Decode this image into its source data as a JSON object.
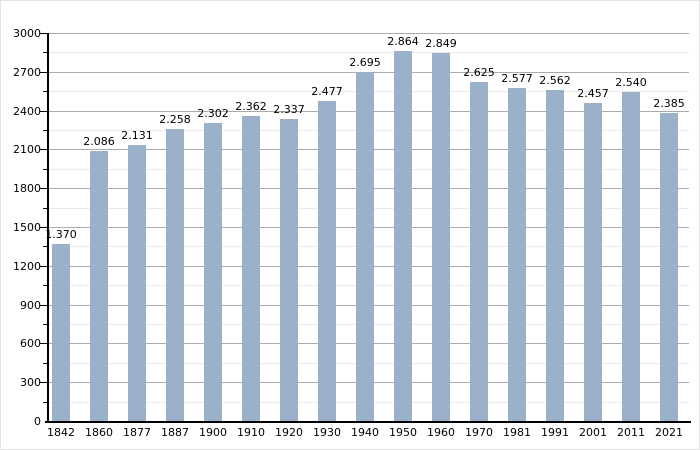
{
  "chart_data": {
    "type": "bar",
    "title": "",
    "xlabel": "",
    "ylabel": "",
    "categories": [
      "1842",
      "1860",
      "1877",
      "1887",
      "1900",
      "1910",
      "1920",
      "1930",
      "1940",
      "1950",
      "1960",
      "1970",
      "1981",
      "1991",
      "2001",
      "2011",
      "2021"
    ],
    "values": [
      1370,
      2086,
      2131,
      2258,
      2302,
      2362,
      2337,
      2477,
      2695,
      2864,
      2849,
      2625,
      2577,
      2562,
      2457,
      2540,
      2385
    ],
    "value_labels": [
      "1.370",
      "2.086",
      "2.131",
      "2.258",
      "2.302",
      "2.362",
      "2.337",
      "2.477",
      "2.695",
      "2.864",
      "2.849",
      "2.625",
      "2.577",
      "2.562",
      "2.457",
      "2.540",
      "2.385"
    ],
    "y_tick_labels": [
      "0",
      "300",
      "600",
      "900",
      "1200",
      "1500",
      "1800",
      "2100",
      "2400",
      "2700",
      "3000"
    ],
    "ylim": [
      0,
      3000
    ],
    "y_major_step": 300,
    "y_minor_step": 150,
    "grid": true,
    "legend": "none",
    "bar_color": "#9bb1c9",
    "major_grid_color": "#aaaaaa",
    "minor_grid_color": "#e9e9ee",
    "axis_color": "#000000",
    "label_color": "#000000"
  }
}
